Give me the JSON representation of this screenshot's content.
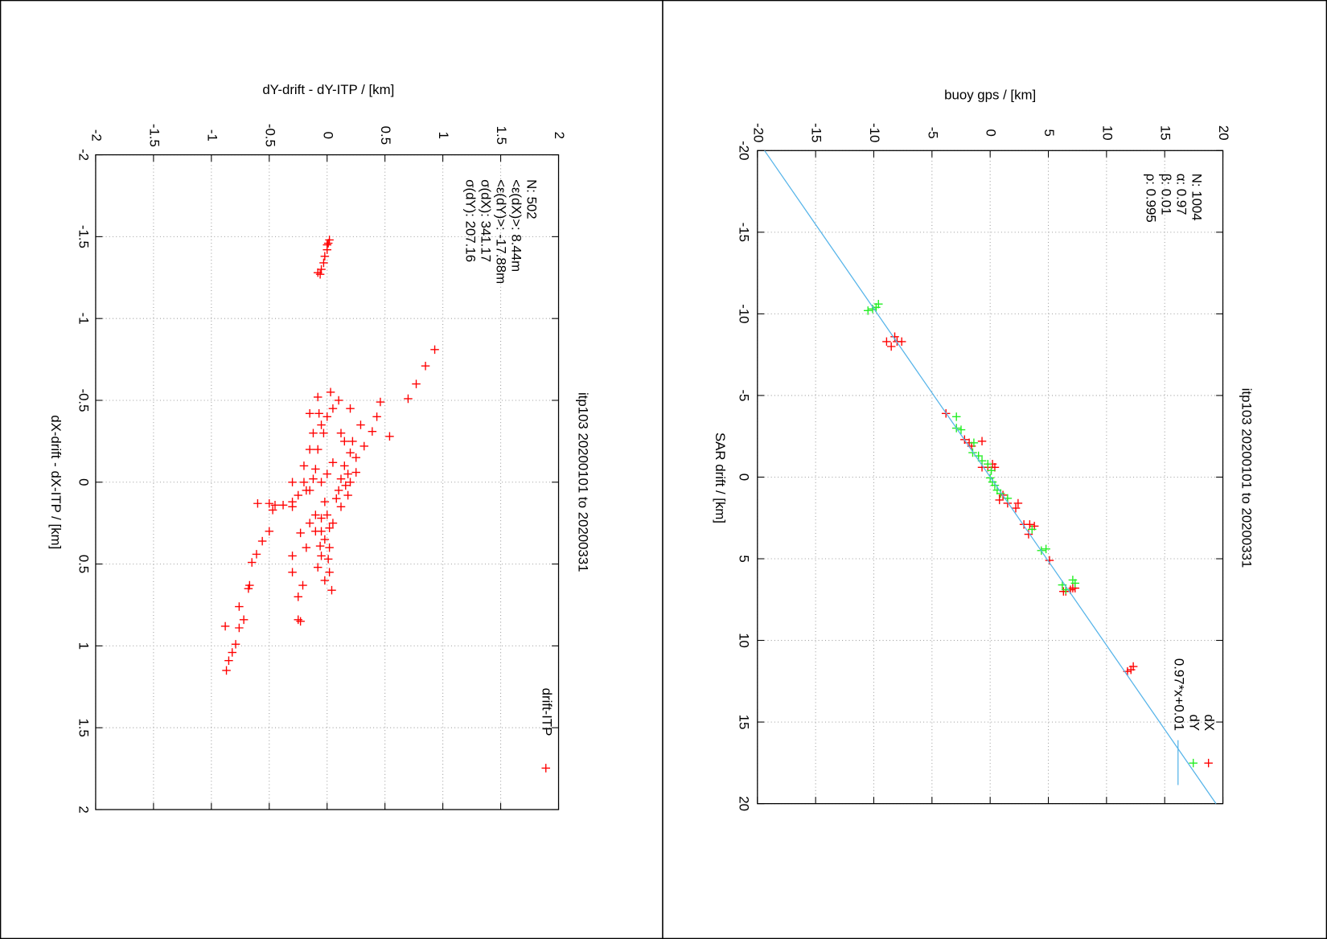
{
  "chart_data": [
    {
      "type": "scatter",
      "title": "itp103 20200101 to 20200331",
      "xlabel": "dX-drift - dX-ITP / [km]",
      "ylabel": "dY-drift - dY-ITP / [km]",
      "xlim": [
        -2,
        2
      ],
      "ylim": [
        -2,
        2
      ],
      "xticks": [
        -2,
        -1.5,
        -1,
        -0.5,
        0,
        0.5,
        1,
        1.5,
        2
      ],
      "yticks": [
        -2,
        -1.5,
        -1,
        -0.5,
        0,
        0.5,
        1,
        1.5,
        2
      ],
      "grid": true,
      "annotations": [
        "N: 502",
        "<ε(dX)>:  8.44m",
        "<ε(dY)>: -17.88m",
        "σ(dX):  341.17",
        "σ(dY):  207.16"
      ],
      "series": [
        {
          "name": "drift-ITP",
          "color": "#ff0000",
          "x": [
            -1.46,
            -1.48,
            -1.45,
            -1.42,
            -1.38,
            -1.34,
            -1.3,
            -1.27,
            -1.28,
            -0.81,
            -0.71,
            -0.6,
            -0.51,
            -0.28,
            -0.49,
            -0.4,
            -0.31,
            -0.22,
            -0.35,
            -0.25,
            -0.45,
            -0.55,
            -0.5,
            -0.4,
            -0.3,
            -0.42,
            -0.35,
            -0.2,
            -0.25,
            -0.15,
            -0.1,
            -0.12,
            -0.05,
            -0.08,
            -0.02,
            0.0,
            0.0,
            0.05,
            0.02,
            -0.05,
            0.1,
            0.05,
            0.0,
            0.08,
            -0.02,
            0.15,
            0.12,
            0.2,
            0.25,
            0.2,
            0.15,
            0.3,
            0.4,
            1.15,
            1.09,
            1.04,
            0.99,
            0.88,
            0.89,
            0.84,
            0.76,
            0.63,
            0.65,
            0.49,
            0.44,
            0.36,
            0.3,
            0.17,
            0.13,
            0.13,
            0.14,
            0.14,
            0.12,
            0.85,
            0.84,
            0.7,
            0.63,
            0.55,
            0.45,
            0.31,
            0.39,
            0.47,
            0.66,
            0.55,
            0.6,
            0.3,
            0.35,
            0.45,
            0.25,
            0.52,
            0.4,
            0.22,
            0.28,
            0.08,
            -0.06,
            -0.18,
            -0.3,
            -0.45,
            -0.52,
            -0.42,
            -0.3,
            -0.2,
            -0.1,
            0.0,
            0.05
          ],
          "values": [
            0.01,
            0.02,
            0.0,
            0.0,
            -0.02,
            -0.03,
            -0.05,
            -0.06,
            -0.08,
            0.93,
            0.85,
            0.77,
            0.7,
            0.54,
            0.46,
            0.43,
            0.39,
            0.32,
            0.29,
            0.22,
            0.2,
            0.03,
            0.1,
            0.0,
            -0.03,
            -0.07,
            -0.05,
            -0.08,
            0.15,
            0.25,
            0.15,
            0.05,
            0.0,
            -0.1,
            0.12,
            0.2,
            -0.05,
            0.1,
            0.16,
            0.18,
            0.08,
            -0.15,
            -0.2,
            -0.25,
            -0.12,
            0.12,
            -0.02,
            0.0,
            0.05,
            -0.1,
            -0.3,
            -0.05,
            0.02,
            -0.87,
            -0.85,
            -0.82,
            -0.79,
            -0.88,
            -0.76,
            -0.72,
            -0.76,
            -0.67,
            -0.68,
            -0.65,
            -0.61,
            -0.56,
            -0.5,
            -0.47,
            -0.6,
            -0.5,
            -0.45,
            -0.38,
            -0.3,
            -0.23,
            -0.25,
            -0.25,
            -0.21,
            -0.3,
            -0.3,
            -0.23,
            -0.06,
            0.01,
            0.04,
            0.02,
            -0.02,
            -0.1,
            -0.02,
            -0.05,
            -0.15,
            -0.08,
            -0.18,
            -0.05,
            0.02,
            0.18,
            0.25,
            0.2,
            0.12,
            0.05,
            -0.08,
            -0.15,
            -0.12,
            -0.15,
            -0.2,
            -0.3,
            -0.18
          ]
        }
      ]
    },
    {
      "type": "scatter",
      "title": "itp103 20200101 to 20200331",
      "xlabel": "SAR drift / [km]",
      "ylabel": "buoy gps / [km]",
      "xlim": [
        -20,
        20
      ],
      "ylim": [
        -20,
        20
      ],
      "xticks": [
        -20,
        -15,
        -10,
        -5,
        0,
        5,
        10,
        15,
        20
      ],
      "yticks": [
        -20,
        -15,
        -10,
        -5,
        0,
        5,
        10,
        15,
        20
      ],
      "grid": true,
      "annotations": [
        "N: 1004",
        "α: 0.97",
        "β: 0.01",
        "ρ: 0.995"
      ],
      "series": [
        {
          "name": "dX",
          "color": "#ff0000",
          "x": [
            -8.6,
            -8.3,
            -8.3,
            -8.0,
            -8.3,
            -3.9,
            -2.2,
            -2.1,
            -2.3,
            -1.9,
            -0.6,
            -0.6,
            -0.6,
            -0.8,
            1.1,
            1.4,
            1.6,
            1.9,
            1.6,
            2.9,
            2.9,
            3.0,
            3.5,
            5.1,
            7.0,
            6.8,
            6.9,
            7.0,
            6.8,
            11.8,
            11.6,
            11.9
          ],
          "values": [
            -8.2,
            -8.0,
            -7.6,
            -8.5,
            -8.9,
            -3.8,
            -0.7,
            -1.8,
            -2.2,
            -1.6,
            -0.7,
            -0.2,
            0.4,
            0.2,
            1.1,
            0.8,
            1.5,
            2.2,
            2.4,
            2.9,
            3.4,
            3.8,
            3.3,
            5.1,
            6.5,
            7.3,
            6.9,
            6.3,
            7.1,
            12.1,
            12.3,
            11.8
          ]
        },
        {
          "name": "dY",
          "color": "#22ee22",
          "x": [
            -10.4,
            -10.2,
            -10.3,
            -10.6,
            -3.7,
            -2.9,
            -3.0,
            -2.1,
            -1.5,
            -1.3,
            -1.0,
            -0.8,
            -0.4,
            0.05,
            0.3,
            0.5,
            0.8,
            1.0,
            1.3,
            3.2,
            4.5,
            4.4,
            6.9,
            6.5,
            6.3,
            6.6
          ],
          "values": [
            -9.8,
            -10.5,
            -10.1,
            -9.6,
            -2.9,
            -2.5,
            -2.9,
            -1.4,
            -1.5,
            -1.0,
            -0.7,
            -0.2,
            0.1,
            0,
            0.2,
            0.4,
            0.6,
            0.9,
            1.5,
            3.6,
            4.4,
            4.8,
            6.5,
            7.3,
            7.1,
            6.2
          ]
        },
        {
          "name": "0.97*x+0.01",
          "type": "line",
          "color": "#56b4e9",
          "x": [
            -20,
            20
          ],
          "values": [
            -19.39,
            19.41
          ]
        }
      ]
    }
  ]
}
